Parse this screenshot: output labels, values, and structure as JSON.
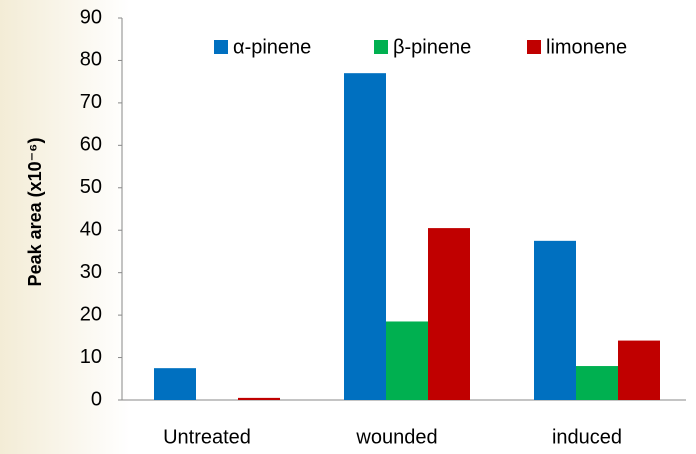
{
  "chart_data": {
    "type": "bar",
    "y_label": "Peak area (x10⁻⁶)",
    "categories": [
      "Untreated",
      "wounded",
      "induced"
    ],
    "series": [
      {
        "name": "α-pinene",
        "color": "#0070c0",
        "values": [
          7.5,
          77,
          37.5
        ]
      },
      {
        "name": "β-pinene",
        "color": "#00b050",
        "values": [
          0,
          18.5,
          8
        ]
      },
      {
        "name": "limonene",
        "color": "#c00000",
        "values": [
          0.5,
          40.5,
          14
        ]
      }
    ],
    "ylim": [
      0,
      90
    ],
    "yticks": [
      0,
      10,
      20,
      30,
      40,
      50,
      60,
      70,
      80,
      90
    ],
    "legend": "top"
  }
}
